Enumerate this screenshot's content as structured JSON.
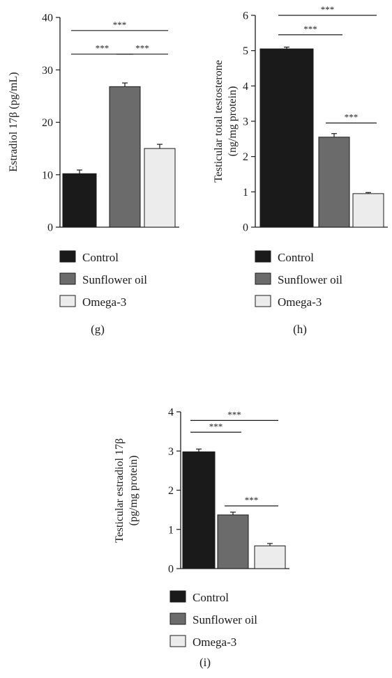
{
  "legend_colors": {
    "Control": "#1a1a1a",
    "Sunflower oil": "#6b6b6b",
    "Omega-3": "#ececec"
  },
  "chart_data": [
    {
      "type": "bar",
      "panel_label": "(g)",
      "ylabel": "Estradiol 17β (pg/mL)",
      "categories": [
        "Control",
        "Sunflower oil",
        "Omega-3"
      ],
      "values": [
        10.2,
        26.8,
        15.0
      ],
      "errors": [
        0.7,
        0.7,
        0.8
      ],
      "ylim": [
        0,
        40
      ],
      "yticks": [
        "0",
        "10",
        "20",
        "30",
        "40"
      ],
      "ytick_values": [
        0,
        10,
        20,
        30,
        40
      ],
      "significance": [
        {
          "from": 0,
          "to": 1,
          "y": 33.0,
          "label": "***"
        },
        {
          "from": 1,
          "to": 2,
          "y": 33.0,
          "label": "***"
        },
        {
          "from": 0,
          "to": 2,
          "y": 37.5,
          "label": "***"
        }
      ],
      "legend": [
        "Control",
        "Sunflower oil",
        "Omega-3"
      ]
    },
    {
      "type": "bar",
      "panel_label": "(h)",
      "ylabel_lines": [
        "Testicular total testosterone",
        "(ng/mg protein)"
      ],
      "categories": [
        "Control",
        "Sunflower oil",
        "Omega-3"
      ],
      "values": [
        5.05,
        2.55,
        0.95
      ],
      "errors": [
        0.05,
        0.1,
        0.03
      ],
      "ylim": [
        0,
        6
      ],
      "yticks": [
        "0",
        "1",
        "2",
        "3",
        "4",
        "5",
        "6"
      ],
      "ytick_values": [
        0,
        1,
        2,
        3,
        4,
        5,
        6
      ],
      "significance": [
        {
          "from": 0,
          "to": 1,
          "y": 5.45,
          "label": "***"
        },
        {
          "from": 0,
          "to": 2,
          "y": 6.0,
          "label": "***"
        },
        {
          "from": 1,
          "to": 2,
          "y": 2.95,
          "label": "***"
        }
      ],
      "legend": [
        "Control",
        "Sunflower oil",
        "Omega-3"
      ]
    },
    {
      "type": "bar",
      "panel_label": "(i)",
      "ylabel_lines": [
        "Testicular estradiol 17β",
        "(pg/mg protein)"
      ],
      "categories": [
        "Control",
        "Sunflower oil",
        "Omega-3"
      ],
      "values": [
        2.98,
        1.37,
        0.58
      ],
      "errors": [
        0.07,
        0.07,
        0.06
      ],
      "ylim": [
        0,
        4
      ],
      "yticks": [
        "0",
        "1",
        "2",
        "3",
        "4"
      ],
      "ytick_values": [
        0,
        1,
        2,
        3,
        4
      ],
      "significance": [
        {
          "from": 0,
          "to": 1,
          "y": 3.48,
          "label": "***"
        },
        {
          "from": 0,
          "to": 2,
          "y": 3.78,
          "label": "***"
        },
        {
          "from": 1,
          "to": 2,
          "y": 1.6,
          "label": "***"
        }
      ],
      "legend": [
        "Control",
        "Sunflower oil",
        "Omega-3"
      ]
    }
  ]
}
